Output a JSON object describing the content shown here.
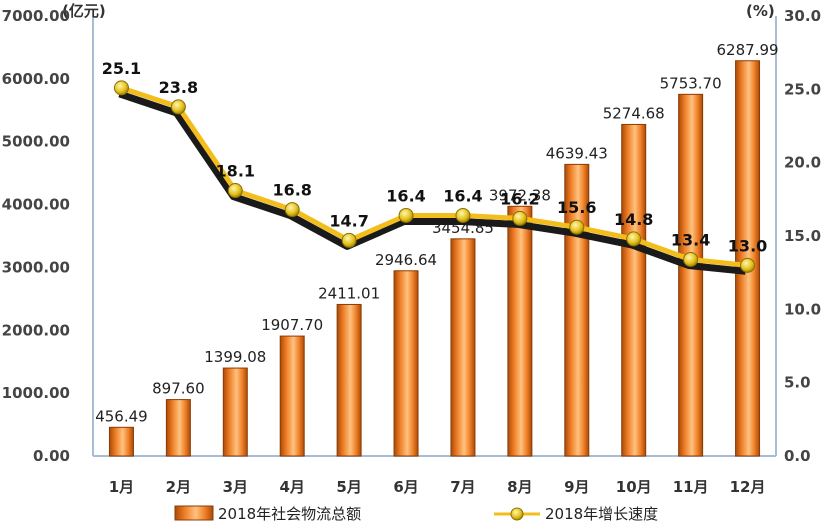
{
  "chart_data": {
    "type": "bar",
    "categories": [
      "1月",
      "2月",
      "3月",
      "4月",
      "5月",
      "6月",
      "7月",
      "8月",
      "9月",
      "10月",
      "11月",
      "12月"
    ],
    "series": [
      {
        "name": "2018年社会物流总额",
        "type": "bar",
        "axis": "left",
        "values": [
          456.49,
          897.6,
          1399.08,
          1907.7,
          2411.01,
          2946.64,
          3454.85,
          3972.38,
          4639.43,
          5274.68,
          5753.7,
          6287.99
        ],
        "labels": [
          "456.49",
          "897.60",
          "1399.08",
          "1907.70",
          "2411.01",
          "2946.64",
          "3454.85",
          "3972.38",
          "4639.43",
          "5274.68",
          "5753.70",
          "6287.99"
        ]
      },
      {
        "name": "2018年增长速度",
        "type": "line",
        "axis": "right",
        "values": [
          25.1,
          23.8,
          18.1,
          16.8,
          14.7,
          16.4,
          16.4,
          16.2,
          15.6,
          14.8,
          13.4,
          13.0
        ],
        "labels": [
          "25.1",
          "23.8",
          "18.1",
          "16.8",
          "14.7",
          "16.4",
          "16.4",
          "16.2",
          "15.6",
          "14.8",
          "13.4",
          "13.0"
        ]
      }
    ],
    "y_left": {
      "unit": "(亿元)",
      "range": [
        0,
        7000
      ],
      "ticks": [
        "0.00",
        "1000.00",
        "2000.00",
        "3000.00",
        "4000.00",
        "5000.00",
        "6000.00",
        "7000.00"
      ]
    },
    "y_right": {
      "unit": "(%)",
      "range": [
        0,
        30
      ],
      "ticks": [
        "0.0",
        "5.0",
        "10.0",
        "15.0",
        "20.0",
        "25.0",
        "30.0"
      ]
    },
    "legend_position": "bottom",
    "grid": false,
    "colors": {
      "bar": "#ee7d25",
      "bar_dark": "#b3520d",
      "bar_light": "#ffc58a",
      "line": "#f3be1b",
      "line_shadow": "#1a1a1a",
      "marker": "#e5c21c",
      "axis": "#a8bcd6"
    }
  }
}
